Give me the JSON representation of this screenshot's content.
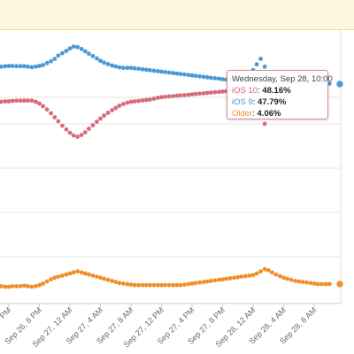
{
  "chart_data": {
    "type": "line",
    "x": [
      "",
      "Sep 26, 8 PM",
      "Sep 27, 12 AM",
      "Sep 27, 4 AM",
      "Sep 27, 8 AM",
      "Sep 27, 12 PM",
      "Sep 27, 4 PM",
      "Sep 27, 8 PM",
      "Sep 28, 12 AM",
      "Sep 28, 4 AM",
      "Sep 28, 8 AM"
    ],
    "x_tick_labels": [
      "PM",
      "Sep 26, 8 PM",
      "Sep 27, 12 AM",
      "Sep 27, 4 AM",
      "Sep 27, 8 AM",
      "Sep 27, 12 PM",
      "Sep 27, 4 PM",
      "Sep 27, 8 PM",
      "Sep 28, 12 AM",
      "Sep 28, 4 AM",
      "Sep 28, 8 AM"
    ],
    "series": [
      {
        "name": "iOS 9",
        "color": "#4a98d8",
        "points": [
          [
            -0.5,
            49.55
          ],
          [
            -0.38,
            49.55
          ],
          [
            -0.25,
            49.55
          ],
          [
            -0.12,
            49.57
          ],
          [
            0.0,
            49.58
          ],
          [
            0.12,
            49.58
          ],
          [
            0.25,
            49.57
          ],
          [
            0.38,
            49.57
          ],
          [
            0.5,
            49.57
          ],
          [
            0.62,
            49.55
          ],
          [
            0.75,
            49.53
          ],
          [
            0.88,
            49.55
          ],
          [
            1.0,
            49.58
          ],
          [
            1.12,
            49.62
          ],
          [
            1.25,
            49.7
          ],
          [
            1.38,
            49.78
          ],
          [
            1.5,
            49.88
          ],
          [
            1.62,
            50.02
          ],
          [
            1.75,
            50.12
          ],
          [
            1.88,
            50.22
          ],
          [
            2.0,
            50.32
          ],
          [
            2.12,
            50.4
          ],
          [
            2.25,
            50.38
          ],
          [
            2.38,
            50.3
          ],
          [
            2.5,
            50.2
          ],
          [
            2.62,
            50.1
          ],
          [
            2.75,
            50.0
          ],
          [
            2.88,
            49.9
          ],
          [
            3.0,
            49.8
          ],
          [
            3.12,
            49.72
          ],
          [
            3.25,
            49.66
          ],
          [
            3.38,
            49.6
          ],
          [
            3.5,
            49.56
          ],
          [
            3.62,
            49.52
          ],
          [
            3.75,
            49.5
          ],
          [
            3.88,
            49.5
          ],
          [
            4.0,
            49.5
          ],
          [
            4.12,
            49.48
          ],
          [
            4.25,
            49.46
          ],
          [
            4.38,
            49.44
          ],
          [
            4.5,
            49.42
          ],
          [
            4.62,
            49.4
          ],
          [
            4.75,
            49.38
          ],
          [
            4.88,
            49.36
          ],
          [
            5.0,
            49.34
          ],
          [
            5.12,
            49.32
          ],
          [
            5.25,
            49.3
          ],
          [
            5.38,
            49.28
          ],
          [
            5.5,
            49.26
          ],
          [
            5.62,
            49.24
          ],
          [
            5.75,
            49.22
          ],
          [
            5.88,
            49.2
          ],
          [
            6.0,
            49.18
          ],
          [
            6.12,
            49.16
          ],
          [
            6.25,
            49.14
          ],
          [
            6.38,
            49.12
          ],
          [
            6.5,
            49.1
          ],
          [
            6.62,
            49.08
          ],
          [
            6.75,
            49.06
          ],
          [
            6.88,
            49.04
          ],
          [
            7.0,
            49.02
          ],
          [
            7.12,
            49.0
          ],
          [
            7.25,
            48.98
          ],
          [
            7.38,
            48.96
          ],
          [
            7.5,
            48.94
          ],
          [
            7.62,
            48.9
          ],
          [
            7.75,
            48.86
          ],
          [
            7.88,
            49.0
          ],
          [
            8.0,
            49.4
          ],
          [
            8.12,
            49.65
          ],
          [
            8.25,
            49.88
          ],
          [
            8.38,
            49.55
          ],
          [
            8.5,
            49.1
          ],
          [
            8.62,
            48.82
          ],
          [
            8.75,
            48.72
          ],
          [
            8.88,
            48.66
          ],
          [
            9.0,
            48.68
          ],
          [
            9.12,
            48.7
          ],
          [
            9.25,
            48.7
          ],
          [
            9.38,
            48.7
          ],
          [
            9.5,
            48.68
          ],
          [
            9.62,
            48.66
          ],
          [
            9.75,
            48.64
          ],
          [
            9.88,
            48.62
          ],
          [
            10.0,
            48.6
          ],
          [
            10.12,
            48.6
          ],
          [
            10.25,
            48.6
          ],
          [
            10.38,
            48.58
          ],
          [
            10.5,
            48.56
          ]
        ]
      },
      {
        "name": "iOS 10",
        "color": "#d66b7a",
        "points": [
          [
            -0.5,
            46.8
          ],
          [
            -0.38,
            46.8
          ],
          [
            -0.25,
            46.8
          ],
          [
            -0.12,
            46.82
          ],
          [
            0.0,
            46.82
          ],
          [
            0.12,
            46.84
          ],
          [
            0.25,
            46.85
          ],
          [
            0.38,
            46.85
          ],
          [
            0.5,
            46.85
          ],
          [
            0.62,
            46.85
          ],
          [
            0.75,
            46.85
          ],
          [
            0.88,
            46.8
          ],
          [
            1.0,
            46.72
          ],
          [
            1.12,
            46.6
          ],
          [
            1.25,
            46.45
          ],
          [
            1.38,
            46.28
          ],
          [
            1.5,
            46.1
          ],
          [
            1.62,
            45.92
          ],
          [
            1.75,
            45.72
          ],
          [
            1.88,
            45.55
          ],
          [
            2.0,
            45.4
          ],
          [
            2.12,
            45.28
          ],
          [
            2.25,
            45.22
          ],
          [
            2.38,
            45.3
          ],
          [
            2.5,
            45.42
          ],
          [
            2.62,
            45.58
          ],
          [
            2.75,
            45.74
          ],
          [
            2.88,
            45.9
          ],
          [
            3.0,
            46.04
          ],
          [
            3.12,
            46.18
          ],
          [
            3.25,
            46.3
          ],
          [
            3.38,
            46.42
          ],
          [
            3.5,
            46.52
          ],
          [
            3.62,
            46.62
          ],
          [
            3.75,
            46.7
          ],
          [
            3.88,
            46.76
          ],
          [
            4.0,
            46.8
          ],
          [
            4.12,
            46.82
          ],
          [
            4.25,
            46.84
          ],
          [
            4.38,
            46.86
          ],
          [
            4.5,
            46.88
          ],
          [
            4.62,
            46.9
          ],
          [
            4.75,
            46.94
          ],
          [
            4.88,
            46.98
          ],
          [
            5.0,
            47.02
          ],
          [
            5.12,
            47.06
          ],
          [
            5.25,
            47.1
          ],
          [
            5.38,
            47.14
          ],
          [
            5.5,
            47.18
          ],
          [
            5.62,
            47.22
          ],
          [
            5.75,
            47.26
          ],
          [
            5.88,
            47.3
          ],
          [
            6.0,
            47.34
          ],
          [
            6.12,
            47.38
          ],
          [
            6.25,
            47.42
          ],
          [
            6.38,
            47.46
          ],
          [
            6.5,
            47.5
          ],
          [
            6.62,
            47.54
          ],
          [
            6.75,
            47.58
          ],
          [
            6.88,
            47.62
          ],
          [
            7.0,
            47.66
          ],
          [
            7.12,
            47.7
          ],
          [
            7.25,
            47.74
          ],
          [
            7.38,
            47.76
          ],
          [
            7.5,
            47.78
          ],
          [
            7.62,
            47.8
          ],
          [
            7.75,
            47.8
          ],
          [
            7.88,
            47.7
          ],
          [
            8.0,
            47.4
          ],
          [
            8.12,
            47.0
          ],
          [
            8.25,
            46.6
          ],
          [
            8.38,
            45.8
          ]
        ]
      },
      {
        "name": "Older",
        "color": "#ef8f2c",
        "points": [
          [
            -0.5,
            3.97
          ],
          [
            -0.38,
            3.96
          ],
          [
            -0.25,
            3.96
          ],
          [
            -0.12,
            3.95
          ],
          [
            0.0,
            3.95
          ],
          [
            0.12,
            3.96
          ],
          [
            0.25,
            3.96
          ],
          [
            0.38,
            3.96
          ],
          [
            0.5,
            3.97
          ],
          [
            0.62,
            3.96
          ],
          [
            0.75,
            3.95
          ],
          [
            0.88,
            3.96
          ],
          [
            1.0,
            3.98
          ],
          [
            1.12,
            4.01
          ],
          [
            1.25,
            4.05
          ],
          [
            1.38,
            4.09
          ],
          [
            1.5,
            4.12
          ],
          [
            1.62,
            4.14
          ],
          [
            1.75,
            4.16
          ],
          [
            1.88,
            4.18
          ],
          [
            2.0,
            4.2
          ],
          [
            2.12,
            4.22
          ],
          [
            2.25,
            4.24
          ],
          [
            2.38,
            4.22
          ],
          [
            2.5,
            4.2
          ],
          [
            2.62,
            4.18
          ],
          [
            2.75,
            4.16
          ],
          [
            2.88,
            4.14
          ],
          [
            3.0,
            4.12
          ],
          [
            3.12,
            4.1
          ],
          [
            3.25,
            4.08
          ],
          [
            3.38,
            4.06
          ],
          [
            3.5,
            4.04
          ],
          [
            3.62,
            4.02
          ],
          [
            3.75,
            4.01
          ],
          [
            3.88,
            4.0
          ],
          [
            4.0,
            3.99
          ],
          [
            4.12,
            3.98
          ],
          [
            4.25,
            3.98
          ],
          [
            4.38,
            3.98
          ],
          [
            4.5,
            3.98
          ],
          [
            4.62,
            3.98
          ],
          [
            4.75,
            3.98
          ],
          [
            4.88,
            3.98
          ],
          [
            5.0,
            3.98
          ],
          [
            5.12,
            3.98
          ],
          [
            5.25,
            3.98
          ],
          [
            5.38,
            3.98
          ],
          [
            5.5,
            3.98
          ],
          [
            5.62,
            3.98
          ],
          [
            5.75,
            3.99
          ],
          [
            5.88,
            4.0
          ],
          [
            6.0,
            4.01
          ],
          [
            6.12,
            4.02
          ],
          [
            6.25,
            4.03
          ],
          [
            6.38,
            4.04
          ],
          [
            6.5,
            4.05
          ],
          [
            6.62,
            4.06
          ],
          [
            6.75,
            4.07
          ],
          [
            6.88,
            4.08
          ],
          [
            7.0,
            4.09
          ],
          [
            7.12,
            4.1
          ],
          [
            7.25,
            4.11
          ],
          [
            7.38,
            4.12
          ],
          [
            7.5,
            4.13
          ],
          [
            7.62,
            4.14
          ],
          [
            7.75,
            4.15
          ],
          [
            7.88,
            4.16
          ],
          [
            8.0,
            4.17
          ],
          [
            8.12,
            4.2
          ],
          [
            8.25,
            4.24
          ],
          [
            8.38,
            4.28
          ],
          [
            8.5,
            4.26
          ],
          [
            8.62,
            4.22
          ],
          [
            8.75,
            4.18
          ],
          [
            8.88,
            4.15
          ],
          [
            9.0,
            4.12
          ],
          [
            9.12,
            4.1
          ],
          [
            9.25,
            4.08
          ],
          [
            9.38,
            4.06
          ],
          [
            9.5,
            4.05
          ],
          [
            9.62,
            4.04
          ],
          [
            9.75,
            4.03
          ],
          [
            9.88,
            4.02
          ],
          [
            10.0,
            4.01
          ],
          [
            10.12,
            4.0
          ],
          [
            10.25,
            4.0
          ],
          [
            10.38,
            4.0
          ],
          [
            10.5,
            4.0
          ]
        ]
      }
    ],
    "grid": true,
    "legend": "none"
  },
  "tooltip": {
    "header": "Wednesday, Sep 28, 10:00",
    "items": [
      {
        "label": "iOS 10",
        "value": "48.16%",
        "color": "#d66b7a"
      },
      {
        "label": "iOS 9",
        "value": "47.79%",
        "color": "#4a98d8"
      },
      {
        "label": "Older",
        "value": "4.06%",
        "color": "#ef8f2c"
      }
    ]
  }
}
